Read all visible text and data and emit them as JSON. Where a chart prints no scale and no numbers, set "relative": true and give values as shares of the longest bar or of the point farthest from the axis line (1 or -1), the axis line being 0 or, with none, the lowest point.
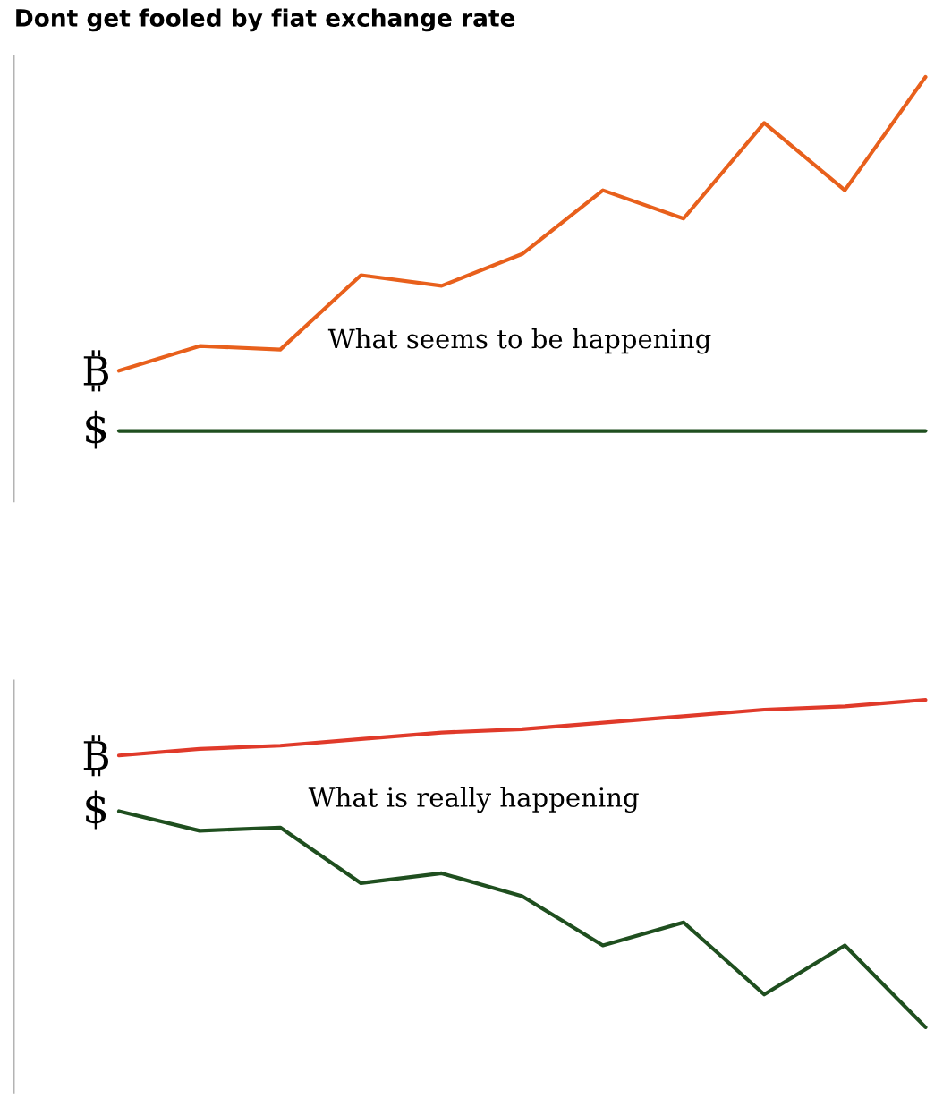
{
  "chart_data": [
    {
      "type": "line",
      "title": "Dont get fooled by fiat exchange rate",
      "relative": true,
      "marker": "none",
      "line_style": "solid",
      "annotations": [
        "What seems to be happening"
      ],
      "categories": [
        null,
        null,
        null,
        null,
        null,
        null,
        null,
        null,
        null,
        null,
        null
      ],
      "series": [
        {
          "color": "#e8601c",
          "values": [
            0.17,
            0.24,
            0.23,
            0.44,
            0.41,
            0.5,
            0.68,
            0.6,
            0.87,
            0.68,
            1.0
          ]
        },
        {
          "name": "$",
          "color": "#1f4f1f",
          "values": [
            0,
            0,
            0,
            0,
            0,
            0,
            0,
            0,
            0,
            0,
            0
          ]
        }
      ]
    },
    {
      "type": "line",
      "relative": true,
      "marker": "none",
      "line_style": "solid",
      "annotations": [
        "What is really happening"
      ],
      "categories": [
        null,
        null,
        null,
        null,
        null,
        null,
        null,
        null,
        null,
        null,
        null
      ],
      "series": [
        {
          "color": "#e03a2a",
          "values": [
            0.83,
            0.85,
            0.86,
            0.88,
            0.9,
            0.91,
            0.93,
            0.95,
            0.97,
            0.98,
            1.0
          ]
        },
        {
          "name": "$",
          "color": "#1f4f1f",
          "values": [
            0.66,
            0.6,
            0.61,
            0.44,
            0.47,
            0.4,
            0.25,
            0.32,
            0.1,
            0.25,
            0
          ]
        }
      ]
    }
  ]
}
